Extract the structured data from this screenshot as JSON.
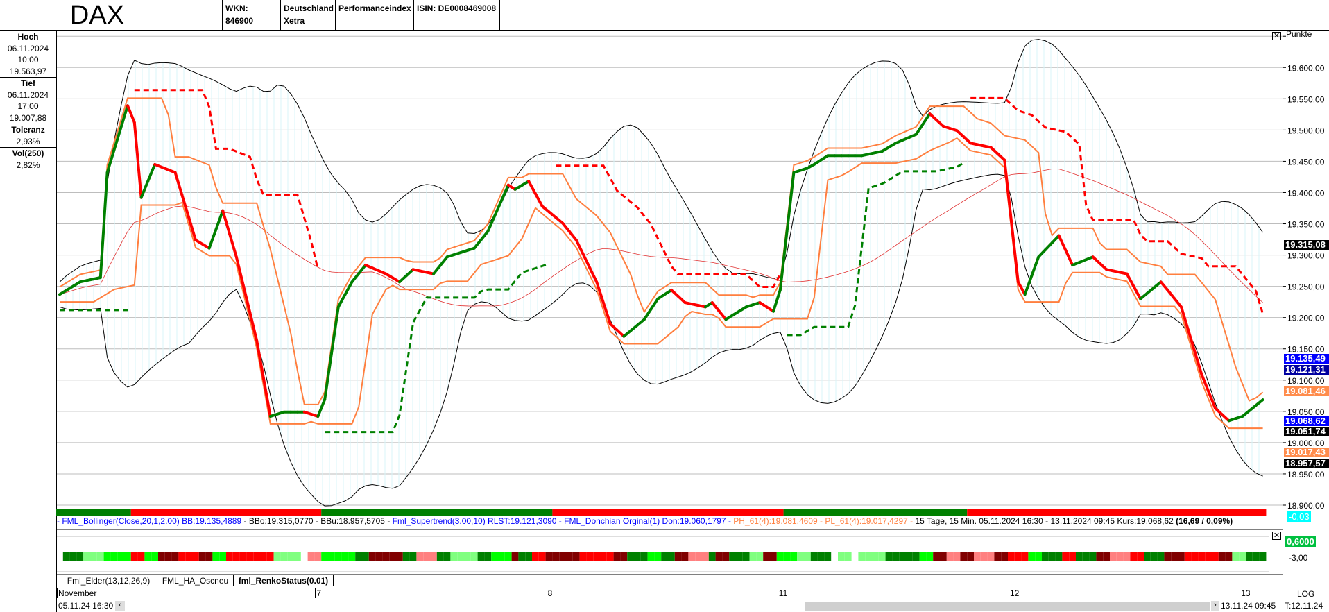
{
  "header": {
    "title": "DAX",
    "wkn": "WKN: 846900",
    "exchange_line1": "Deutschland",
    "exchange_line2": "Xetra",
    "type": "Performanceindex",
    "isin": "ISIN: DE0008469008"
  },
  "left_panel": {
    "high": {
      "label": "Hoch",
      "date": "06.11.2024",
      "time": "10:00",
      "value": "19.563,97"
    },
    "low": {
      "label": "Tief",
      "date": "06.11.2024",
      "time": "17:00",
      "value": "19.007,88"
    },
    "tolerance": {
      "label": "Toleranz",
      "value": "2,93%"
    },
    "vol": {
      "label": "Vol(250)",
      "value": "2,82%"
    }
  },
  "axis": {
    "unit": "Punkte",
    "ticks": [
      "19.600,00",
      "19.550,00",
      "19.500,00",
      "19.450,00",
      "19.400,00",
      "19.350,00",
      "19.300,00",
      "19.250,00",
      "19.200,00",
      "19.150,00",
      "19.100,00",
      "19.050,00",
      "19.000,00",
      "18.950,00",
      "18.900,00"
    ],
    "scale": "LOG",
    "footer": "T:12.11.24"
  },
  "price_labels": [
    {
      "value": "19.315,08",
      "num": 19315.08,
      "bg": "#000000",
      "fg": "#ffffff"
    },
    {
      "value": "19.135,49",
      "num": 19135.49,
      "bg": "#0000ff",
      "fg": "#ffffff"
    },
    {
      "value": "19.121,31",
      "num": 19121.31,
      "bg": "#0000a0",
      "fg": "#ffffff"
    },
    {
      "value": "19.081,46",
      "num": 19081.46,
      "bg": "#ff8c4c",
      "fg": "#ffffff"
    },
    {
      "value": "19.068,62",
      "num": 19068.62,
      "bg": "#0000ff",
      "fg": "#ffffff"
    },
    {
      "value": "19.051,74",
      "num": 19051.74,
      "bg": "#000000",
      "fg": "#ffffff"
    },
    {
      "value": "19.017,43",
      "num": 19017.43,
      "bg": "#ff8c4c",
      "fg": "#ffffff"
    },
    {
      "value": "18.957,57",
      "num": 18957.57,
      "bg": "#000000",
      "fg": "#ffffff"
    }
  ],
  "change_badge": "-0,03",
  "legend": {
    "bollinger": "- FML_Bollinger(Close,20,1,2.00) BB:19.135,4889",
    "bands": " - BBo:19.315,0770 - BBu:18.957,5705 - ",
    "supertrend": "Fml_Supertrend(3.00,10) RLST:19.121,3090 - FML_Donchian Orginal(1) Don:19.060,1797 - ",
    "pivots": "PH_61(4):19.081,4609 - PL_61(4):19.017,4297 - ",
    "info": "15 Tage, 15 Min. 05.11.2024 16:30 - 13.11.2024 09:45 Kurs:19.068,62 ",
    "change": "(16,69 / 0,09%)"
  },
  "lower_panel": {
    "value_label": "0,6000",
    "tick": "-3,00"
  },
  "tabs": [
    {
      "label": "Fml_Elder(13,12,26,9)",
      "active": false
    },
    {
      "label": "FML_HA_Oscneu",
      "active": false
    },
    {
      "label": "fml_RenkoStatus(0.01)",
      "active": true
    }
  ],
  "time_axis": {
    "labels": [
      {
        "text": "November",
        "at": "05.11 16:30"
      },
      {
        "text": "7",
        "at": "07.11 09:00"
      },
      {
        "text": "8",
        "at": "08.11 09:00"
      },
      {
        "text": "11",
        "at": "11.11 09:00"
      },
      {
        "text": "12",
        "at": "12.11 09:00"
      },
      {
        "text": "13",
        "at": "13.11 09:00"
      }
    ],
    "start": "05.11.24 16:30",
    "end": "13.11.24 09:45"
  },
  "colors": {
    "up": "#008000",
    "down": "#ff0000",
    "bollinger": "#000000",
    "donchian": "#ff7f3f",
    "band_fill": "#d8f4f8"
  },
  "chart_data": {
    "type": "line",
    "ylim": [
      18900,
      19658
    ],
    "grid": true,
    "status": [
      {
        "from": "05.11 16:30",
        "to": "06.11 10:30",
        "state": "up"
      },
      {
        "from": "06.11 10:45",
        "to": "07.11 09:00",
        "state": "down"
      },
      {
        "from": "07.11 09:15",
        "to": "08.11 09:00",
        "state": "up"
      },
      {
        "from": "08.11 09:15",
        "to": "11.11 09:00",
        "state": "down"
      },
      {
        "from": "11.11 09:15",
        "to": "11.11 15:45",
        "state": "up"
      },
      {
        "from": "11.11 16:00",
        "to": "13.11 09:45",
        "state": "down"
      }
    ],
    "close": [
      [
        "05.11 16:30",
        19237
      ],
      [
        "05.11 17:15",
        19257
      ],
      [
        "06.11 09:30",
        19264
      ],
      [
        "06.11 09:45",
        19432
      ],
      [
        "06.11 10:30",
        19539
      ],
      [
        "06.11 10:45",
        19512
      ],
      [
        "06.11 11:00",
        19392
      ],
      [
        "06.11 11:30",
        19445
      ],
      [
        "06.11 12:15",
        19432
      ],
      [
        "06.11 13:00",
        19324
      ],
      [
        "06.11 13:30",
        19311
      ],
      [
        "06.11 14:00",
        19371
      ],
      [
        "06.11 14:30",
        19297
      ],
      [
        "06.11 15:15",
        19163
      ],
      [
        "06.11 15:45",
        19042
      ],
      [
        "06.11 16:15",
        19049
      ],
      [
        "06.11 17:00",
        19049
      ],
      [
        "07.11 09:00",
        19042
      ],
      [
        "07.11 09:15",
        19069
      ],
      [
        "07.11 09:45",
        19217
      ],
      [
        "07.11 10:15",
        19257
      ],
      [
        "07.11 10:45",
        19284
      ],
      [
        "07.11 11:30",
        19270
      ],
      [
        "07.11 12:00",
        19257
      ],
      [
        "07.11 12:30",
        19277
      ],
      [
        "07.11 13:15",
        19270
      ],
      [
        "07.11 13:45",
        19297
      ],
      [
        "07.11 14:45",
        19311
      ],
      [
        "07.11 15:15",
        19338
      ],
      [
        "07.11 16:00",
        19412
      ],
      [
        "07.11 16:15",
        19405
      ],
      [
        "07.11 16:45",
        19418
      ],
      [
        "07.11 17:15",
        19378
      ],
      [
        "08.11 09:30",
        19351
      ],
      [
        "08.11 10:00",
        19324
      ],
      [
        "08.11 10:45",
        19257
      ],
      [
        "08.11 11:15",
        19190
      ],
      [
        "08.11 11:45",
        19170
      ],
      [
        "08.11 12:30",
        19197
      ],
      [
        "08.11 13:00",
        19230
      ],
      [
        "08.11 13:30",
        19244
      ],
      [
        "08.11 14:00",
        19224
      ],
      [
        "08.11 14:45",
        19217
      ],
      [
        "08.11 15:00",
        19224
      ],
      [
        "08.11 15:30",
        19197
      ],
      [
        "08.11 16:15",
        19217
      ],
      [
        "08.11 16:45",
        19224
      ],
      [
        "08.11 17:15",
        19210
      ],
      [
        "11.11 09:00",
        19244
      ],
      [
        "11.11 09:30",
        19432
      ],
      [
        "11.11 10:00",
        19439
      ],
      [
        "11.11 10:15",
        19445
      ],
      [
        "11.11 10:45",
        19459
      ],
      [
        "11.11 11:30",
        19459
      ],
      [
        "11.11 12:00",
        19459
      ],
      [
        "11.11 12:45",
        19466
      ],
      [
        "11.11 13:15",
        19479
      ],
      [
        "11.11 14:00",
        19493
      ],
      [
        "11.11 14:30",
        19526
      ],
      [
        "11.11 15:00",
        19506
      ],
      [
        "11.11 15:30",
        19499
      ],
      [
        "11.11 16:00",
        19479
      ],
      [
        "11.11 16:45",
        19472
      ],
      [
        "11.11 17:15",
        19452
      ],
      [
        "12.11 09:15",
        19257
      ],
      [
        "12.11 09:30",
        19237
      ],
      [
        "12.11 10:00",
        19297
      ],
      [
        "12.11 10:45",
        19331
      ],
      [
        "12.11 11:15",
        19284
      ],
      [
        "12.11 12:00",
        19297
      ],
      [
        "12.11 12:30",
        19277
      ],
      [
        "12.11 13:15",
        19270
      ],
      [
        "12.11 13:45",
        19230
      ],
      [
        "12.11 14:30",
        19257
      ],
      [
        "12.11 14:45",
        19244
      ],
      [
        "12.11 15:15",
        19217
      ],
      [
        "12.11 16:00",
        19109
      ],
      [
        "12.11 16:30",
        19055
      ],
      [
        "12.11 17:00",
        19035
      ],
      [
        "13.11 09:00",
        19042
      ],
      [
        "13.11 09:45",
        19068.62
      ]
    ]
  }
}
